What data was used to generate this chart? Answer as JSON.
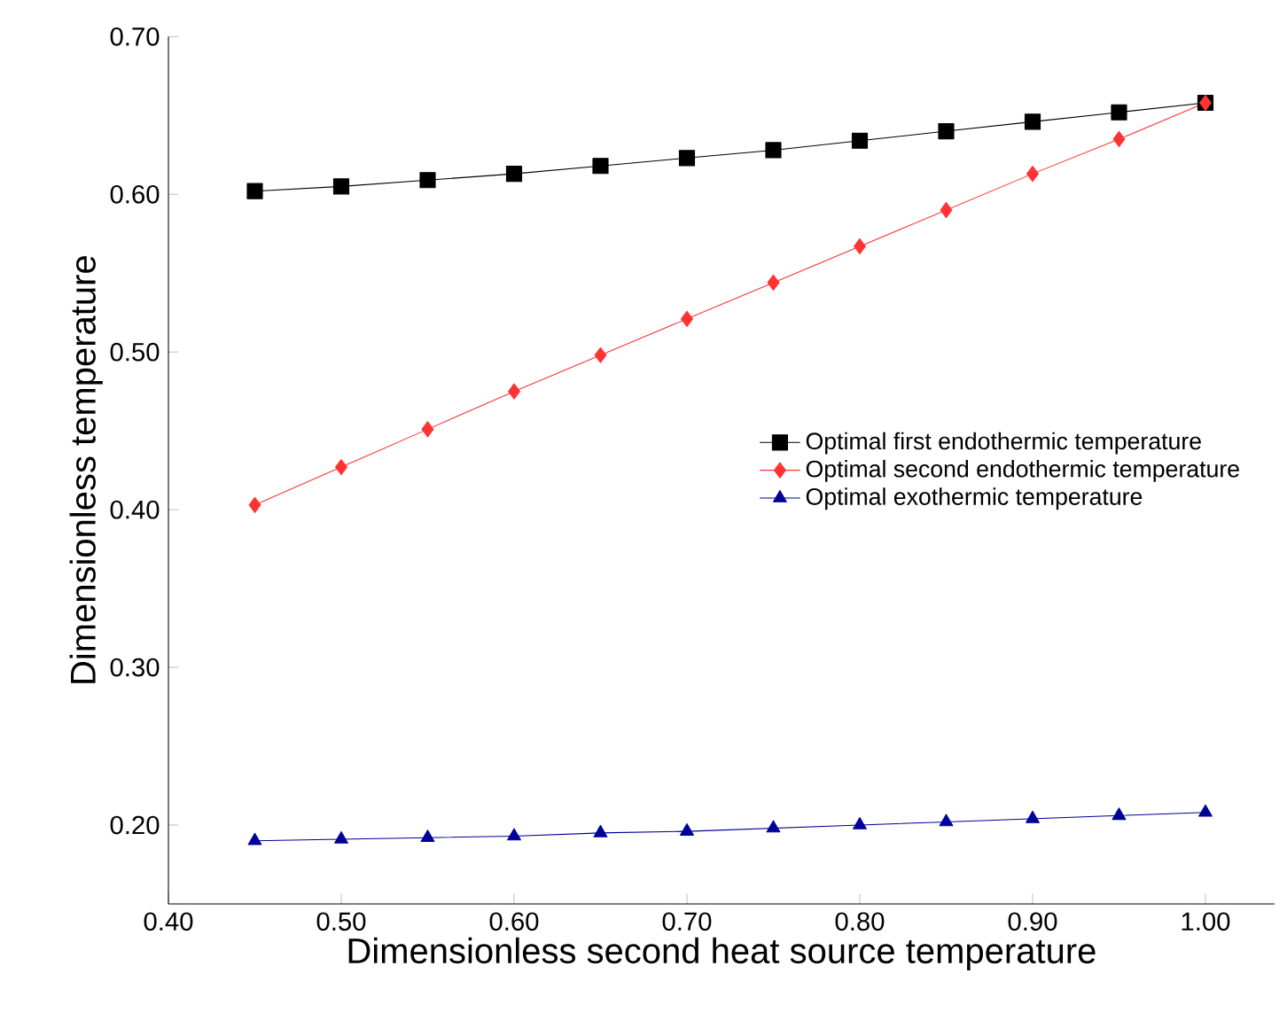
{
  "chart_data": {
    "type": "line",
    "xlabel": "Dimensionless second heat source temperature",
    "ylabel": "Dimensionless temperature",
    "x": [
      0.45,
      0.5,
      0.55,
      0.6,
      0.65,
      0.7,
      0.75,
      0.8,
      0.85,
      0.9,
      0.95,
      1.0
    ],
    "series": [
      {
        "name": "Optimal first endothermic temperature",
        "color": "#000000",
        "marker": "square",
        "values": [
          0.602,
          0.605,
          0.609,
          0.613,
          0.618,
          0.623,
          0.628,
          0.634,
          0.64,
          0.646,
          0.652,
          0.658
        ]
      },
      {
        "name": "Optimal second endothermic temperature",
        "color": "#ff3333",
        "marker": "diamond",
        "values": [
          0.403,
          0.427,
          0.451,
          0.475,
          0.498,
          0.521,
          0.544,
          0.567,
          0.59,
          0.613,
          0.635,
          0.658
        ]
      },
      {
        "name": "Optimal exothermic temperature",
        "color": "#000099",
        "marker": "triangle",
        "values": [
          0.19,
          0.191,
          0.192,
          0.193,
          0.195,
          0.196,
          0.198,
          0.2,
          0.202,
          0.204,
          0.206,
          0.208
        ]
      }
    ],
    "xlim": [
      0.4,
      1.04
    ],
    "ylim": [
      0.15,
      0.7
    ],
    "xticks": [
      {
        "value": 0.4,
        "label": "0.40"
      },
      {
        "value": 0.5,
        "label": "0.50"
      },
      {
        "value": 0.6,
        "label": "0.60"
      },
      {
        "value": 0.7,
        "label": "0.70"
      },
      {
        "value": 0.8,
        "label": "0.80"
      },
      {
        "value": 0.9,
        "label": "0.90"
      },
      {
        "value": 1.0,
        "label": "1.00"
      }
    ],
    "yticks": [
      {
        "value": 0.2,
        "label": "0.20"
      },
      {
        "value": 0.3,
        "label": "0.30"
      },
      {
        "value": 0.4,
        "label": "0.40"
      },
      {
        "value": 0.5,
        "label": "0.50"
      },
      {
        "value": 0.6,
        "label": "0.60"
      },
      {
        "value": 0.7,
        "label": "0.70"
      }
    ],
    "grid": false,
    "legend": "right",
    "line_style": "solid"
  }
}
